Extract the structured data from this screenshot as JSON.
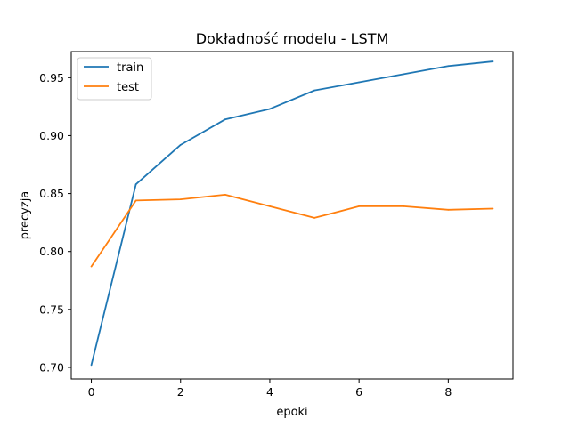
{
  "chart_data": {
    "type": "line",
    "title": "Dokładność modelu - LSTM",
    "xlabel": "epoki",
    "ylabel": "precyzja",
    "x": [
      0,
      1,
      2,
      3,
      4,
      5,
      6,
      7,
      8,
      9
    ],
    "xlim": [
      -0.45,
      9.45
    ],
    "ylim": [
      0.69,
      0.9725
    ],
    "xticks": [
      0,
      2,
      4,
      6,
      8
    ],
    "xtick_labels": [
      "0",
      "2",
      "4",
      "6",
      "8"
    ],
    "yticks": [
      0.7,
      0.75,
      0.8,
      0.85,
      0.9,
      0.95
    ],
    "ytick_labels": [
      "0.70",
      "0.75",
      "0.80",
      "0.85",
      "0.90",
      "0.95"
    ],
    "grid": false,
    "legend_position": "top-left",
    "series": [
      {
        "name": "train",
        "color": "#1f77b4",
        "values": [
          0.702,
          0.858,
          0.892,
          0.914,
          0.923,
          0.939,
          0.946,
          0.953,
          0.96,
          0.964
        ]
      },
      {
        "name": "test",
        "color": "#ff7f0e",
        "values": [
          0.787,
          0.844,
          0.845,
          0.849,
          0.839,
          0.829,
          0.839,
          0.839,
          0.836,
          0.837
        ]
      }
    ]
  }
}
